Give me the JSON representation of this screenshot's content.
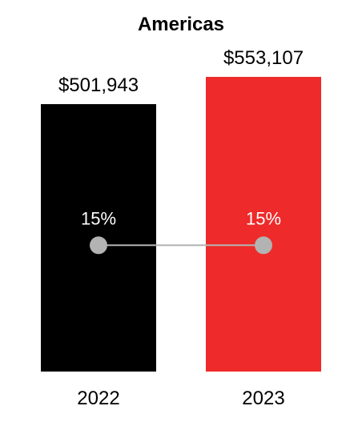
{
  "chart_data": {
    "type": "bar",
    "title": "Americas",
    "categories": [
      "2022",
      "2023"
    ],
    "values": [
      501943,
      553107
    ],
    "value_labels": [
      "$501,943",
      "$553,107"
    ],
    "ylim": [
      0,
      553107
    ],
    "colors": [
      "#000000",
      "#ee2a2a"
    ],
    "overlay": {
      "type": "line",
      "values": [
        15,
        15
      ],
      "labels": [
        "15%",
        "15%"
      ],
      "ylim": [
        0,
        35
      ],
      "marker_color": "#b3b3b3",
      "line_color": "#b3b3b3"
    },
    "legend": "none",
    "grid": false
  }
}
